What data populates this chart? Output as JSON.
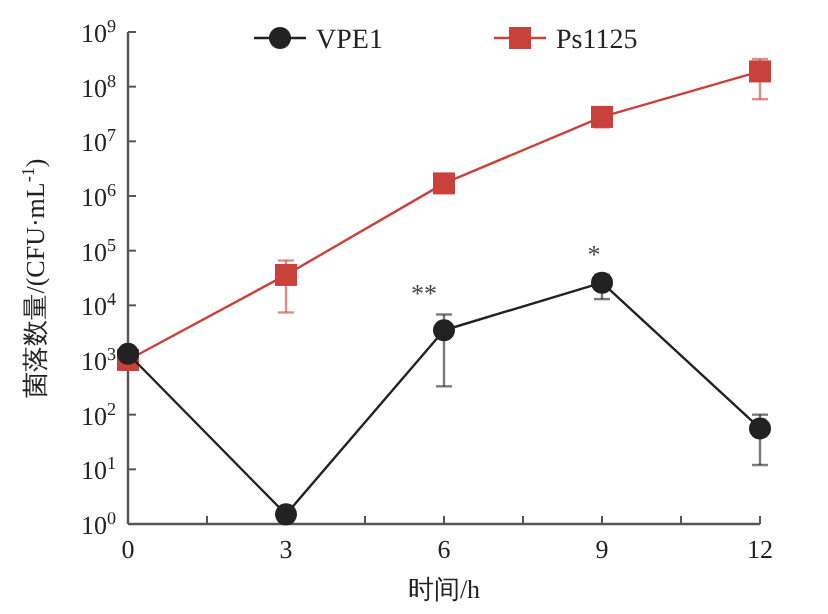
{
  "chart_data": {
    "type": "line",
    "xlabel": "时间/h",
    "ylabel": "菌落数量/(CFU·mL$^{-1}$)",
    "log": "y",
    "x": [
      0,
      3,
      6,
      9,
      12
    ],
    "xlim": [
      0,
      12
    ],
    "xticks": [
      0,
      {
        "value": 1.5,
        "label": null
      },
      3,
      {
        "value": 4.5,
        "label": null
      },
      6,
      {
        "value": 7.5,
        "label": null
      },
      9,
      {
        "value": 10.5,
        "label": null
      },
      12
    ],
    "ylim": [
      1,
      1000000000
    ],
    "yticks": [
      {
        "value": 1,
        "label": "10$^{0}$"
      },
      {
        "value": 10,
        "label": "10$^{1}$"
      },
      {
        "value": 100,
        "label": "10$^{2}$"
      },
      {
        "value": 1000,
        "label": "10$^{3}$"
      },
      {
        "value": 10000,
        "label": "10$^{4}$"
      },
      {
        "value": 100000,
        "label": "10$^{5}$"
      },
      {
        "value": 1000000,
        "label": "10$^{6}$"
      },
      {
        "value": 10000000,
        "label": "10$^{7}$"
      },
      {
        "value": 100000000,
        "label": "10$^{8}$"
      },
      {
        "value": 1000000000,
        "label": "10$^{9}$"
      }
    ],
    "series": [
      {
        "name": "VPE1",
        "color": "#222222",
        "marker": "circle",
        "values": [
          1300,
          1.5,
          3500,
          26000,
          56
        ],
        "errors": [
          null,
          null,
          [
            330,
            6800
          ],
          [
            13000,
            36000
          ],
          [
            12,
            100
          ]
        ]
      },
      {
        "name": "Ps1125",
        "color": "#c8413b",
        "marker": "square",
        "values": [
          1000,
          36000,
          1700000,
          28000000,
          190000000
        ],
        "errors": [
          null,
          [
            7400,
            66000
          ],
          null,
          [
            18000000,
            35000000
          ],
          [
            59000000,
            320000000
          ]
        ]
      }
    ],
    "annotations": [
      {
        "text": "**",
        "x": 6,
        "y": 6800
      },
      {
        "text": "*",
        "x": 9,
        "y": 36000
      }
    ],
    "legend": "top",
    "grid": false
  }
}
